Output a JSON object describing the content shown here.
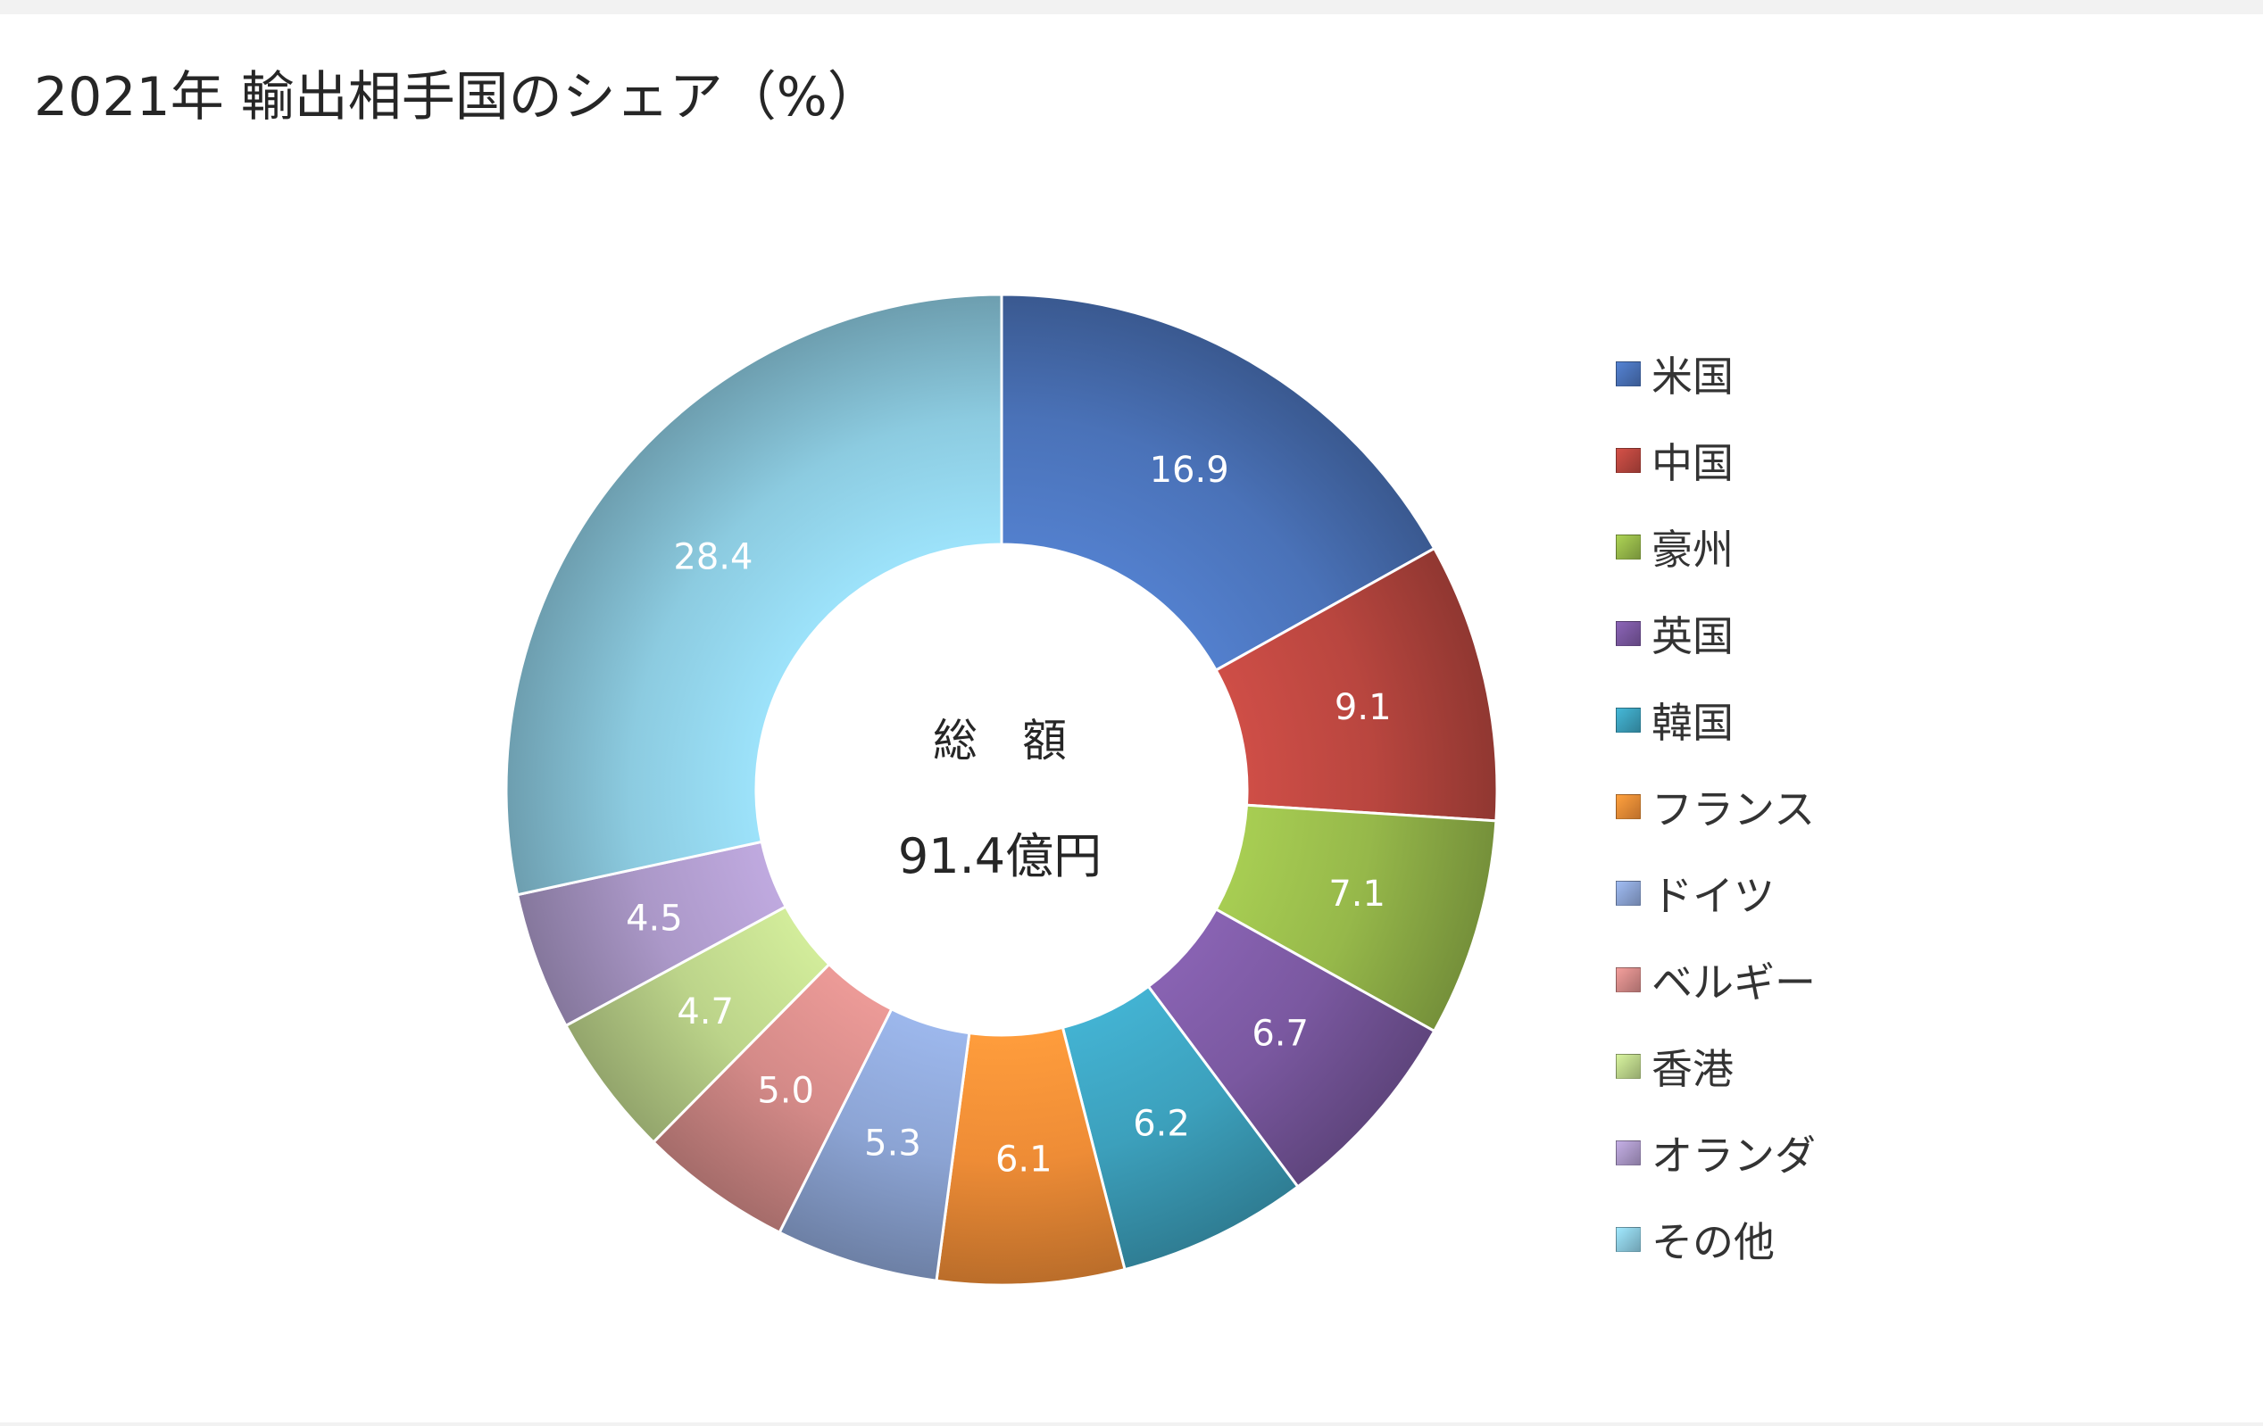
{
  "chart_data": {
    "type": "pie",
    "title": "2021年 輸出相手国のシェア（%）",
    "center_label": "総　額",
    "center_value": "91.4億円",
    "legend_position": "right",
    "series": [
      {
        "name": "米国",
        "value": 16.9,
        "label": "16.9",
        "color": "#4a72b8"
      },
      {
        "name": "中国",
        "value": 9.1,
        "label": "9.1",
        "color": "#b9463f"
      },
      {
        "name": "豪州",
        "value": 7.1,
        "label": "7.1",
        "color": "#96b84a"
      },
      {
        "name": "英国",
        "value": 6.7,
        "label": "6.7",
        "color": "#7a58a0"
      },
      {
        "name": "韓国",
        "value": 6.2,
        "label": "6.2",
        "color": "#3ca0bc"
      },
      {
        "name": "フランス",
        "value": 6.1,
        "label": "6.1",
        "color": "#ee8c36"
      },
      {
        "name": "ドイツ",
        "value": 5.3,
        "label": "5.3",
        "color": "#8ca4d4"
      },
      {
        "name": "ベルギー",
        "value": 5.0,
        "label": "5.0",
        "color": "#d48a88"
      },
      {
        "name": "香港",
        "value": 4.7,
        "label": "4.7",
        "color": "#bcd48a"
      },
      {
        "name": "オランダ",
        "value": 4.5,
        "label": "4.5",
        "color": "#ab98c8"
      },
      {
        "name": "その他",
        "value": 28.4,
        "label": "28.4",
        "color": "#8ccbe0"
      }
    ]
  }
}
